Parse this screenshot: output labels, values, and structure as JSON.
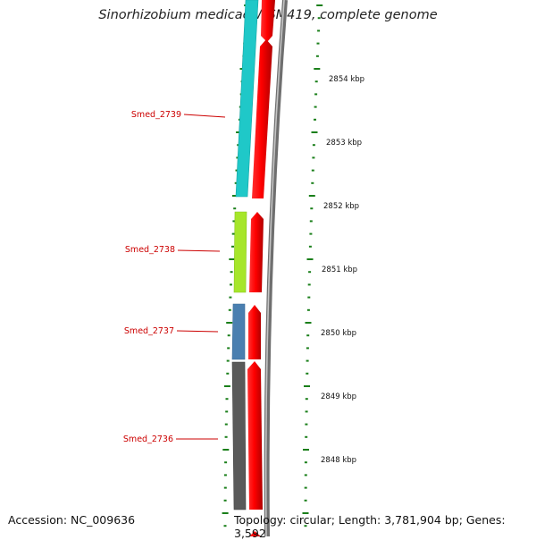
{
  "title": "Sinorhizobium medicae WSM419, complete genome",
  "accession_text": "Accession: NC_009636",
  "topology_text": "Topology: circular; Length: 3,781,904 bp; Genes: 3,592",
  "colors": {
    "label": "#cc0000",
    "forward_strand": "#ff0000",
    "backbone": "#7f7f7f",
    "tick": "#1a7f1a",
    "cog_cyan": "#1fc8c8",
    "cog_green": "#a6e62a",
    "cog_blue": "#4a7fb0",
    "cog_gray": "#5a5a5a"
  },
  "scale": {
    "tick_labels": [
      "2854 kbp",
      "2853 kbp",
      "2852 kbp",
      "2851 kbp",
      "2850 kbp",
      "2849 kbp",
      "2848 kbp"
    ]
  },
  "genes": [
    {
      "name": "Smed_2739",
      "cog_color": "#1fc8c8"
    },
    {
      "name": "Smed_2738",
      "cog_color": "#a6e62a"
    },
    {
      "name": "Smed_2737",
      "cog_color": "#4a7fb0"
    },
    {
      "name": "Smed_2736",
      "cog_color": "#5a5a5a"
    }
  ]
}
